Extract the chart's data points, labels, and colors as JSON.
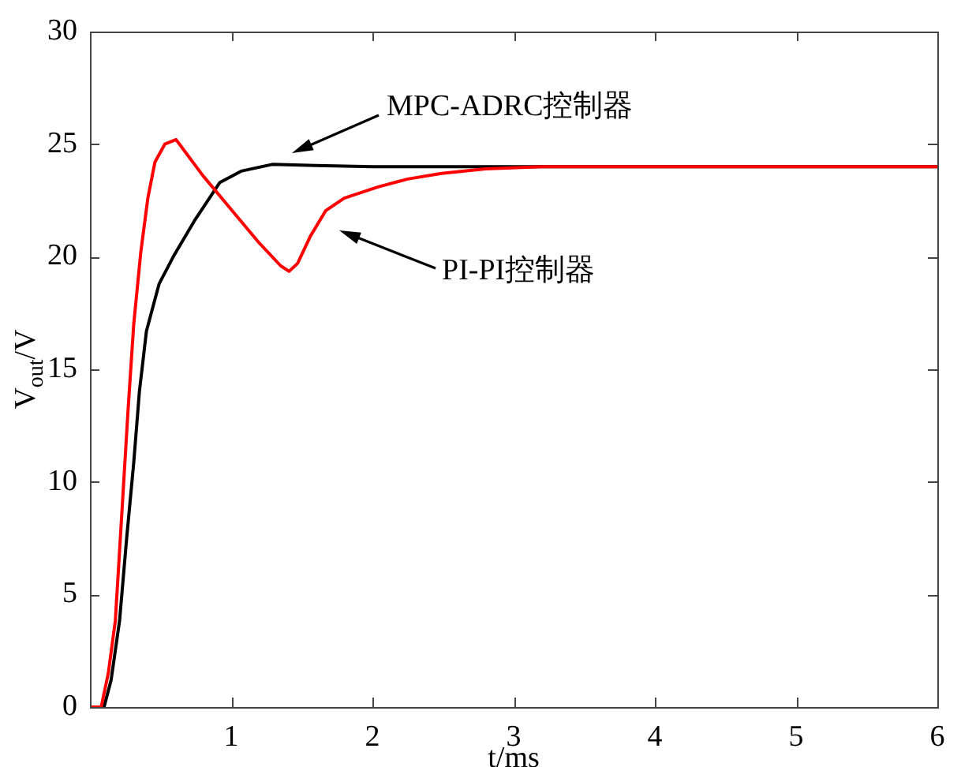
{
  "chart_data": {
    "type": "line",
    "xlabel": "t/ms",
    "ylabel": "V$_{out}$/V",
    "xlim": [
      0,
      6
    ],
    "ylim": [
      0,
      30
    ],
    "xticks": [
      {
        "value": 0,
        "label": null
      },
      1,
      2,
      3,
      4,
      5,
      6
    ],
    "yticks": [
      0,
      5,
      10,
      15,
      20,
      25,
      30
    ],
    "legend": false,
    "marker": "none",
    "line_style": "solid",
    "series": [
      {
        "color": "#ff0000",
        "x": [
          0,
          0.08,
          0.13,
          0.18,
          0.22,
          0.27,
          0.31,
          0.36,
          0.41,
          0.46,
          0.53,
          0.61,
          0.8,
          1.0,
          1.2,
          1.35,
          1.41,
          1.47,
          1.56,
          1.67,
          1.8,
          2.04,
          2.25,
          2.49,
          2.8,
          3.2,
          4,
          5,
          6
        ],
        "values": [
          0,
          0,
          1.5,
          3.85,
          8,
          13.2,
          17,
          20.2,
          22.6,
          24.2,
          25,
          25.2,
          23.6,
          22.1,
          20.6,
          19.6,
          19.35,
          19.7,
          20.9,
          22.05,
          22.6,
          23.1,
          23.45,
          23.7,
          23.9,
          24,
          24,
          24,
          24
        ]
      },
      {
        "color": "#000000",
        "x": [
          0,
          0.1,
          0.15,
          0.21,
          0.26,
          0.31,
          0.35,
          0.4,
          0.49,
          0.59,
          0.74,
          0.92,
          1.07,
          1.29,
          1.6,
          2,
          3,
          4,
          5,
          6
        ],
        "values": [
          0,
          0,
          1.2,
          3.85,
          7.5,
          10.85,
          14,
          16.7,
          18.8,
          20,
          21.6,
          23.3,
          23.8,
          24.1,
          24.05,
          24,
          24,
          24,
          24,
          24
        ]
      }
    ],
    "annotations": [
      "MPC-ADRC控制器",
      "PI-PI控制器"
    ]
  }
}
